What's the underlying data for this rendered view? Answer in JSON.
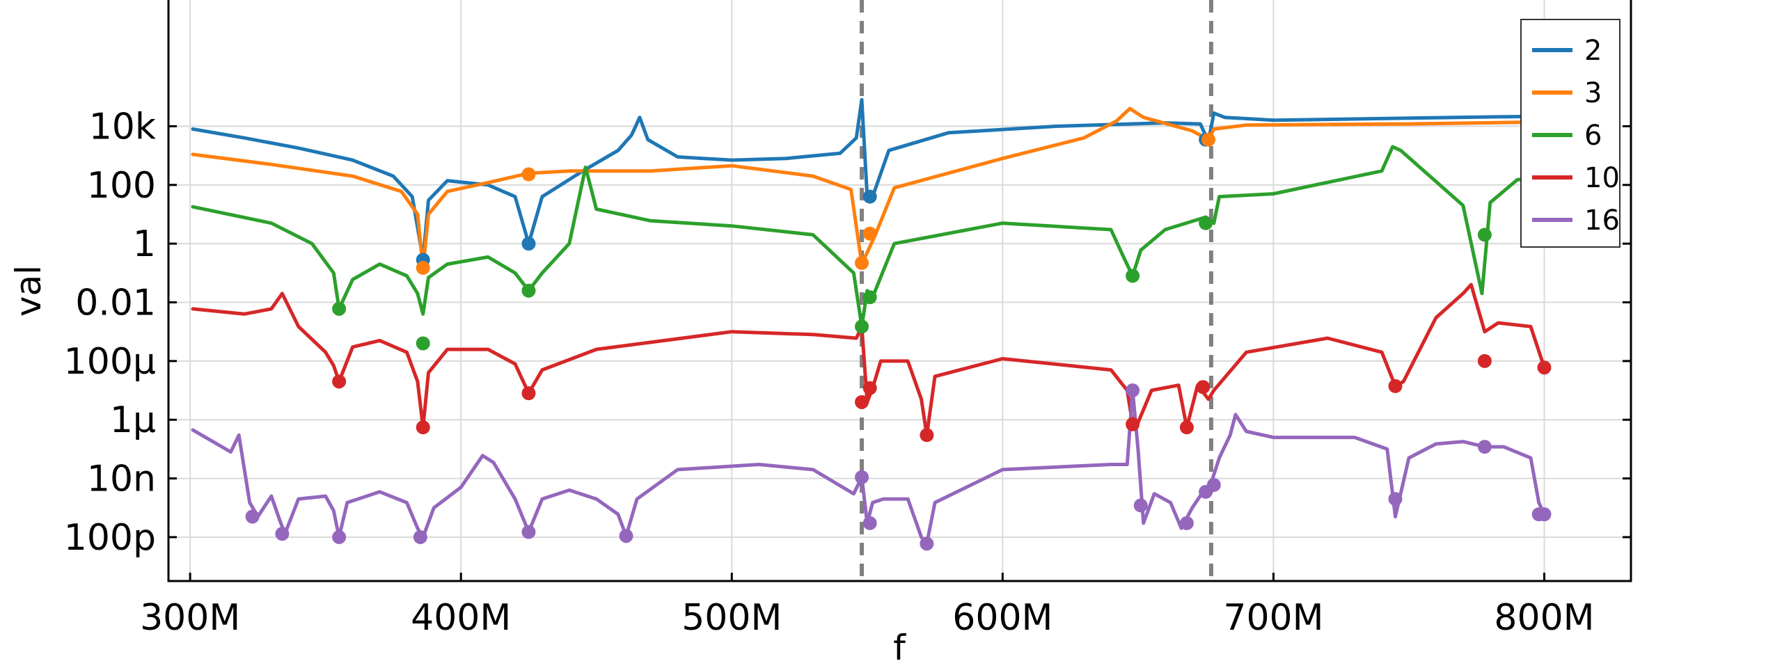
{
  "chart_data": {
    "type": "line",
    "title": "",
    "xlabel": "f",
    "ylabel": "val",
    "x_scale": "linear",
    "y_scale": "log",
    "xlim": [
      292000000,
      832000000
    ],
    "ylim": [
      3.2e-12,
      200000000
    ],
    "grid": true,
    "legend_position": "top-right",
    "x_ticks": [
      {
        "value": 300000000,
        "label": "300M"
      },
      {
        "value": 400000000,
        "label": "400M"
      },
      {
        "value": 500000000,
        "label": "500M"
      },
      {
        "value": 600000000,
        "label": "600M"
      },
      {
        "value": 700000000,
        "label": "700M"
      },
      {
        "value": 800000000,
        "label": "800M"
      }
    ],
    "y_ticks": [
      {
        "value": 1e-10,
        "label": "100p"
      },
      {
        "value": 1e-08,
        "label": "10n"
      },
      {
        "value": 1e-06,
        "label": "1μ"
      },
      {
        "value": 0.0001,
        "label": "100μ"
      },
      {
        "value": 0.01,
        "label": "0.01"
      },
      {
        "value": 1,
        "label": "1"
      },
      {
        "value": 100,
        "label": "100"
      },
      {
        "value": 10000,
        "label": "10k"
      }
    ],
    "vertical_markers": [
      548000000,
      677000000
    ],
    "series": [
      {
        "name": "2",
        "color": "#1f77b4",
        "x": [
          301000000,
          320000000,
          340000000,
          360000000,
          375000000,
          382000000,
          386000000,
          388000000,
          395000000,
          410000000,
          420000000,
          425000000,
          430000000,
          445000000,
          458000000,
          463000000,
          466000000,
          469000000,
          480000000,
          500000000,
          520000000,
          540000000,
          546000000,
          548000000,
          550000000,
          552000000,
          558000000,
          580000000,
          620000000,
          660000000,
          673000000,
          676000000,
          678000000,
          682000000,
          700000000,
          750000000,
          800000000
        ],
        "y": [
          8000,
          4000,
          1800,
          700,
          200,
          40,
          0.3,
          30,
          140,
          100,
          40,
          1,
          40,
          300,
          1500,
          5000,
          20000,
          3500,
          900,
          700,
          800,
          1200,
          4000,
          80000,
          40,
          40,
          1500,
          6000,
          10000,
          13000,
          12000,
          3000,
          28000,
          20000,
          16000,
          19000,
          22000
        ]
      },
      {
        "name": "3",
        "color": "#ff7f0e",
        "x": [
          301000000,
          330000000,
          360000000,
          378000000,
          384000000,
          386000000,
          388000000,
          395000000,
          410000000,
          425000000,
          440000000,
          470000000,
          500000000,
          530000000,
          544000000,
          548000000,
          550000000,
          553000000,
          560000000,
          600000000,
          630000000,
          642000000,
          647000000,
          652000000,
          670000000,
          676000000,
          678000000,
          690000000,
          750000000,
          800000000
        ],
        "y": [
          1100,
          500,
          200,
          60,
          10,
          0.15,
          10,
          60,
          120,
          250,
          300,
          300,
          450,
          200,
          70,
          0.2,
          0.5,
          2,
          80,
          800,
          4000,
          15000,
          40000,
          20000,
          7000,
          3500,
          8000,
          11000,
          12000,
          14000
        ]
      },
      {
        "name": "6",
        "color": "#2ca02c",
        "x": [
          301000000,
          330000000,
          345000000,
          353000000,
          355000000,
          360000000,
          370000000,
          380000000,
          384000000,
          386000000,
          388000000,
          395000000,
          410000000,
          420000000,
          425000000,
          430000000,
          440000000,
          446000000,
          450000000,
          470000000,
          500000000,
          530000000,
          545000000,
          548000000,
          550000000,
          552000000,
          560000000,
          600000000,
          640000000,
          645000000,
          648000000,
          651000000,
          660000000,
          675000000,
          678000000,
          680000000,
          700000000,
          740000000,
          744000000,
          747000000,
          770000000,
          777000000,
          780000000,
          790000000,
          800000000
        ],
        "y": [
          18,
          5,
          1,
          0.1,
          0.006,
          0.06,
          0.2,
          0.08,
          0.02,
          0.004,
          0.07,
          0.2,
          0.35,
          0.1,
          0.025,
          0.1,
          1,
          400,
          15,
          6,
          4,
          2,
          0.1,
          0.0015,
          0.025,
          0.015,
          1,
          5,
          3,
          0.3,
          0.08,
          0.6,
          3,
          8,
          5,
          40,
          50,
          300,
          2000,
          1500,
          20,
          0.02,
          25,
          150,
          200
        ]
      },
      {
        "name": "10",
        "color": "#d62728",
        "x": [
          301000000,
          320000000,
          330000000,
          334000000,
          340000000,
          350000000,
          353000000,
          355000000,
          360000000,
          370000000,
          380000000,
          384000000,
          386000000,
          388000000,
          395000000,
          410000000,
          420000000,
          425000000,
          430000000,
          450000000,
          500000000,
          530000000,
          546000000,
          548000000,
          550000000,
          552000000,
          555000000,
          565000000,
          570000000,
          572000000,
          575000000,
          600000000,
          640000000,
          646000000,
          648000000,
          650000000,
          655000000,
          665000000,
          668000000,
          672000000,
          676000000,
          678000000,
          690000000,
          720000000,
          740000000,
          745000000,
          748000000,
          760000000,
          770000000,
          773000000,
          778000000,
          783000000,
          795000000,
          800000000
        ],
        "y": [
          0.006,
          0.004,
          0.006,
          0.02,
          0.0015,
          0.0002,
          7e-05,
          2e-05,
          0.0003,
          0.0005,
          0.0002,
          2e-05,
          5.5e-07,
          4e-05,
          0.00025,
          0.00025,
          8e-05,
          8e-06,
          5e-05,
          0.00025,
          0.001,
          0.0008,
          0.0006,
          0.0015,
          4e-06,
          1.2e-05,
          0.0001,
          0.0001,
          5e-06,
          3e-07,
          3e-05,
          0.00012,
          5e-05,
          1e-05,
          7e-07,
          8e-07,
          1e-05,
          1.5e-05,
          5.5e-07,
          1.5e-05,
          5e-06,
          1e-05,
          0.0002,
          0.0006,
          0.0002,
          1.4e-05,
          2e-05,
          0.003,
          0.02,
          0.04,
          0.001,
          0.002,
          0.0015,
          6e-05
        ]
      },
      {
        "name": "16",
        "color": "#9467bd",
        "x": [
          301000000,
          315000000,
          318000000,
          322000000,
          325000000,
          330000000,
          333000000,
          335000000,
          340000000,
          350000000,
          353000000,
          355000000,
          358000000,
          370000000,
          380000000,
          384000000,
          386000000,
          390000000,
          400000000,
          408000000,
          412000000,
          420000000,
          425000000,
          430000000,
          440000000,
          450000000,
          458000000,
          461000000,
          465000000,
          480000000,
          510000000,
          530000000,
          545000000,
          548000000,
          550000000,
          552000000,
          556000000,
          565000000,
          570000000,
          572000000,
          575000000,
          600000000,
          640000000,
          646000000,
          648000000,
          650000000,
          652000000,
          656000000,
          662000000,
          666000000,
          670000000,
          674000000,
          677000000,
          680000000,
          684000000,
          686000000,
          690000000,
          700000000,
          730000000,
          742000000,
          745000000,
          750000000,
          760000000,
          770000000,
          778000000,
          785000000,
          795000000,
          798000000,
          800000000
        ],
        "y": [
          4.5e-07,
          8e-08,
          3e-07,
          1.5e-09,
          5e-10,
          2.5e-09,
          4e-10,
          1.3e-10,
          2e-09,
          2.5e-09,
          8e-10,
          1e-10,
          1.5e-09,
          3.5e-09,
          1.5e-09,
          2e-10,
          1e-10,
          1e-09,
          5e-09,
          6e-08,
          3.5e-08,
          2e-09,
          1.5e-10,
          2e-09,
          4e-09,
          2e-09,
          6e-10,
          1.1e-10,
          2e-09,
          2e-08,
          3e-08,
          2e-08,
          3e-09,
          1.1e-08,
          3e-10,
          1.5e-09,
          2e-09,
          2e-09,
          1e-10,
          6e-11,
          1.5e-09,
          2e-08,
          3e-08,
          3e-08,
          1e-05,
          1e-07,
          3e-10,
          3e-09,
          1.5e-09,
          2e-10,
          1e-09,
          3.5e-09,
          7e-09,
          5e-08,
          3e-07,
          1.5e-06,
          4e-07,
          2.5e-07,
          2.5e-07,
          1e-07,
          5e-10,
          5e-08,
          1.5e-07,
          1.8e-07,
          1.2e-07,
          1.2e-07,
          5e-08,
          1.5e-09,
          6e-10
        ]
      }
    ],
    "markers": [
      {
        "series": "2",
        "x": [
          386000000,
          425000000,
          551000000,
          675000000
        ],
        "y": [
          0.28,
          1,
          40,
          3500
        ]
      },
      {
        "series": "3",
        "x": [
          386000000,
          425000000,
          548000000,
          551000000,
          676000000
        ],
        "y": [
          0.15,
          230,
          0.22,
          2.2,
          3500
        ]
      },
      {
        "series": "6",
        "x": [
          355000000,
          386000000,
          425000000,
          548000000,
          551000000,
          648000000,
          675000000,
          778000000
        ],
        "y": [
          0.006,
          0.0004,
          0.025,
          0.0015,
          0.015,
          0.08,
          5,
          2
        ]
      },
      {
        "series": "10",
        "x": [
          355000000,
          386000000,
          425000000,
          548000000,
          551000000,
          572000000,
          648000000,
          668000000,
          674000000,
          745000000,
          778000000,
          800000000
        ],
        "y": [
          2e-05,
          5.5e-07,
          8e-06,
          4e-06,
          1.2e-05,
          3e-07,
          7e-07,
          5.5e-07,
          1.3e-05,
          1.4e-05,
          0.0001,
          6e-05
        ]
      },
      {
        "series": "16",
        "x": [
          323000000,
          334000000,
          355000000,
          385000000,
          425000000,
          461000000,
          548000000,
          551000000,
          572000000,
          648000000,
          651000000,
          668000000,
          675000000,
          678000000,
          745000000,
          778000000,
          798000000,
          800000000
        ],
        "y": [
          5e-10,
          1.3e-10,
          1e-10,
          1e-10,
          1.5e-10,
          1.1e-10,
          1.1e-08,
          3e-10,
          6e-11,
          1e-05,
          1.2e-09,
          3e-10,
          3.5e-09,
          6e-09,
          2e-09,
          1.2e-07,
          6e-10,
          6e-10
        ]
      }
    ]
  }
}
